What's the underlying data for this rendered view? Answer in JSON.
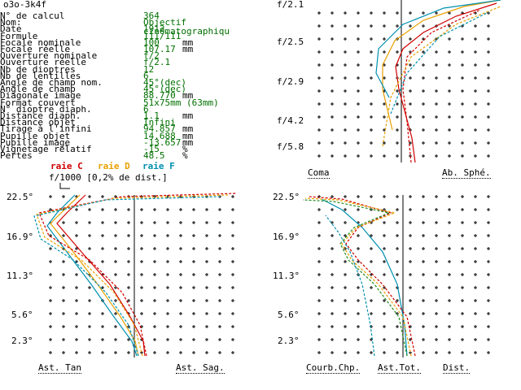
{
  "title": "o3o-3k4f",
  "info": [
    {
      "label": "N° de calcul",
      "value": "364",
      "unit": ""
    },
    {
      "label": "Nom:",
      "value": "Objectif cin0matographiqu",
      "unit": ""
    },
    {
      "label": "Date",
      "value": "1912",
      "unit": ""
    },
    {
      "label": "Formule",
      "value": "111/111",
      "unit": ""
    },
    {
      "label": "Focale nominale",
      "value": "100",
      "unit": "mm"
    },
    {
      "label": "Focale réelle",
      "value": "107.17",
      "unit": "mm"
    },
    {
      "label": "Ouverture nominale",
      "value": "f/2",
      "unit": ""
    },
    {
      "label": "Ouverture réelle",
      "value": "f/2.1",
      "unit": ""
    },
    {
      "label": "Nb de dioptres",
      "value": "12",
      "unit": ""
    },
    {
      "label": "Nb de lentilles",
      "value": "6",
      "unit": ""
    },
    {
      "label": "Angle de champ nom.",
      "value": "45°(dec)",
      "unit": ""
    },
    {
      "label": "Angle de champ",
      "value": "45°(dec)",
      "unit": ""
    },
    {
      "label": "Diagonale image",
      "value": "88.770",
      "unit": "mm"
    },
    {
      "label": "Format couvert",
      "value": "51x75mm (63mm)",
      "unit": ""
    },
    {
      "label": "N° dioptre diaph.",
      "value": "6",
      "unit": ""
    },
    {
      "label": "Distance diaph.",
      "value": "1.1",
      "unit": "mm"
    },
    {
      "label": "Distance objet",
      "value": "Infini",
      "unit": ""
    },
    {
      "label": "Tirage à l'infini",
      "value": "94.857",
      "unit": "mm"
    },
    {
      "label": "Pupille objet",
      "value": "14.688",
      "unit": "mm"
    },
    {
      "label": "Pupille image",
      "value": "-13.657",
      "unit": "mm"
    },
    {
      "label": "Vignetage relatif",
      "value": "-15",
      "unit": "%"
    },
    {
      "label": "Pertes",
      "value": "48.5",
      "unit": "%"
    }
  ],
  "legend": {
    "c": "raie C",
    "d": "raie D",
    "f": "raie F",
    "c_color": "#d00000",
    "d_color": "#e8a000",
    "f_color": "#0090b0",
    "scale": "f/1000 [0,2% de dist.]"
  },
  "panel_tr": {
    "labels": [
      "f/2.1",
      "f/2.5",
      "f/2.9",
      "f/4.2",
      "f/5.8"
    ],
    "left_caption": "Coma",
    "right_caption": "Ab. Sphé."
  },
  "panel_bl": {
    "labels": [
      "22.5°",
      "16.9°",
      "11.3°",
      "5.6°",
      "2.3°"
    ],
    "left_caption": "Ast. Tan",
    "right_caption": "Ast. Sag."
  },
  "panel_br": {
    "labels": [
      "22.5°",
      "16.9°",
      "11.3°",
      "5.6°",
      "2.3°"
    ],
    "caption_1": "Courb.Chp.",
    "caption_2": "Ast.Tot.",
    "caption_3": "Dist."
  }
}
